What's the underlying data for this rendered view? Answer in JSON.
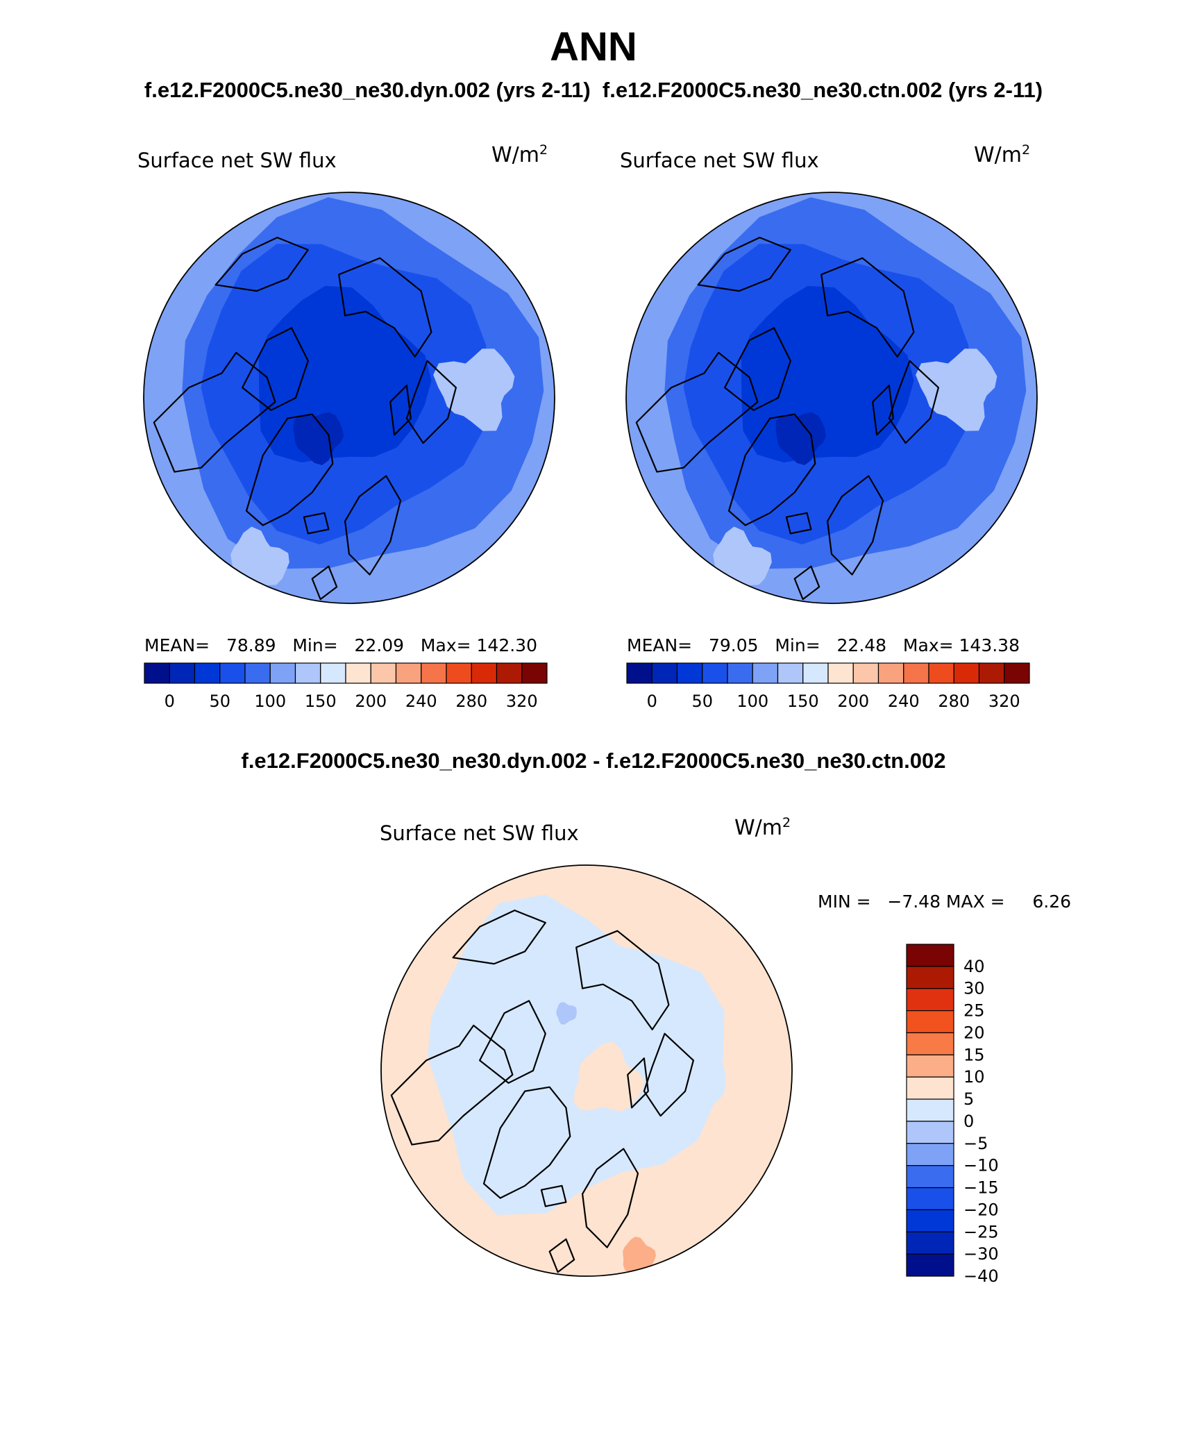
{
  "header": {
    "title": "ANN",
    "subtitle": "f.e12.F2000C5.ne30_ne30.dyn.002 (yrs 2-11)  f.e12.F2000C5.ne30_ne30.ctn.002 (yrs 2-11)",
    "diff_title": "f.e12.F2000C5.ne30_ne30.dyn.002 - f.e12.F2000C5.ne30_ne30.ctn.002"
  },
  "panels": [
    {
      "variable": "Surface net SW flux",
      "units_base": "W/m",
      "units_exp": "2",
      "stats": "MEAN=   78.89   Min=   22.09   Max= 142.30"
    },
    {
      "variable": "Surface net SW flux",
      "units_base": "W/m",
      "units_exp": "2",
      "stats": "MEAN=   79.05   Min=   22.48   Max= 143.38"
    }
  ],
  "diff_panel": {
    "variable": "Surface net SW flux",
    "units_base": "W/m",
    "units_exp": "2",
    "minmax": "MIN =   −7.48 MAX =     6.26"
  },
  "colorbar_top": {
    "colors": [
      "#00108c",
      "#0026b8",
      "#0038d8",
      "#1a50ea",
      "#3a6cf0",
      "#7ea2f5",
      "#aec6fa",
      "#d6e8fd",
      "#fde5d2",
      "#fcc6aa",
      "#f9a27e",
      "#f57449",
      "#ee4c1e",
      "#d92a08",
      "#ad1a04",
      "#7a0303"
    ],
    "labels": [
      "0",
      "50",
      "100",
      "150",
      "200",
      "240",
      "280",
      "320"
    ]
  },
  "colorbar_diff": {
    "colors": [
      "#7a0303",
      "#ad1a04",
      "#e03210",
      "#f2521e",
      "#f87a46",
      "#fcae88",
      "#fde3d0",
      "#d6e8fd",
      "#aec6fa",
      "#7ea2f5",
      "#3a6cf0",
      "#1a50ea",
      "#0038d8",
      "#0026b8",
      "#00108c"
    ],
    "labels": [
      "40",
      "30",
      "25",
      "20",
      "15",
      "10",
      "5",
      "0",
      "−5",
      "−10",
      "−15",
      "−20",
      "−25",
      "−30",
      "−40"
    ]
  }
}
